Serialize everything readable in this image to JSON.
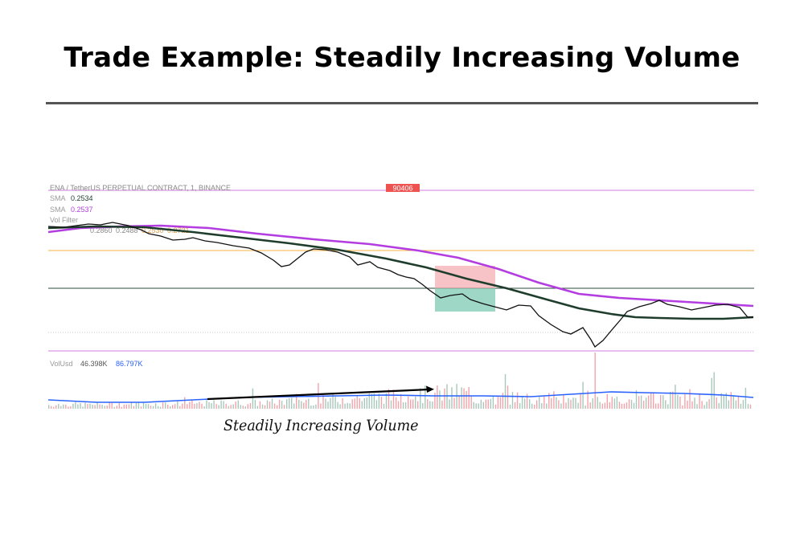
{
  "title": "Trade Example: Steadily Increasing Volume",
  "annotation": "Steadily Increasing Volume",
  "chart_header": {
    "symbol": "ENA / TetherUS PERPETUAL CONTRACT, 1, BINANCE",
    "price_badge": "90406",
    "sma1_label": "SMA",
    "sma1_value": "0.2534",
    "sma2_label": "SMA",
    "sma2_value": "0.2537",
    "vol_filter_label": "Vol Filter",
    "pivot_values": [
      "0.2860",
      "0.2488",
      "0.2530",
      "0.2721"
    ],
    "volume_label": "VolUsd",
    "volume_value": "46.398K",
    "volume_ma_value": "86.797K"
  },
  "colors": {
    "up_candle": "#000000",
    "sma_fast": "#1f3d2c",
    "sma_slow": "#b33de0",
    "level_orange": "#f5b041",
    "level_dark": "#2e4a3c",
    "level_magenta": "#d27de0",
    "stop_zone": "#f4a3a8",
    "target_zone": "#7fc9b4",
    "volume_bar_up": "#a7c8ba",
    "volume_bar_down": "#f2a4aa",
    "volume_ma": "#2962ff",
    "badge": "#ef5350"
  },
  "chart_data": {
    "type": "line",
    "series": [
      {
        "values": [
          0.29,
          0.2895,
          0.2905,
          0.289,
          0.287,
          0.285,
          0.286,
          0.282,
          0.28,
          0.279,
          0.276,
          0.27,
          0.274,
          0.278,
          0.275,
          0.272,
          0.27,
          0.268,
          0.265,
          0.262,
          0.258,
          0.256,
          0.254,
          0.252,
          0.253,
          0.248,
          0.246,
          0.244,
          0.24,
          0.235,
          0.23,
          0.225,
          0.222,
          0.228,
          0.233,
          0.235,
          0.238,
          0.24,
          0.242,
          0.241,
          0.24,
          0.239,
          0.238,
          0.237,
          0.236,
          0.235,
          0.238
        ]
      },
      {
        "values": [
          0.289,
          0.2885,
          0.287,
          0.285,
          0.282,
          0.279,
          0.275,
          0.271,
          0.266,
          0.261,
          0.257,
          0.253,
          0.249,
          0.246,
          0.244,
          0.243,
          0.243,
          0.2432,
          0.2435
        ]
      },
      {
        "values": [
          0.288,
          0.2885,
          0.2885,
          0.288,
          0.287,
          0.2855,
          0.2835,
          0.281,
          0.278,
          0.274,
          0.269,
          0.264,
          0.259,
          0.2555,
          0.2535,
          0.252,
          0.251,
          0.25
        ]
      }
    ]
  }
}
